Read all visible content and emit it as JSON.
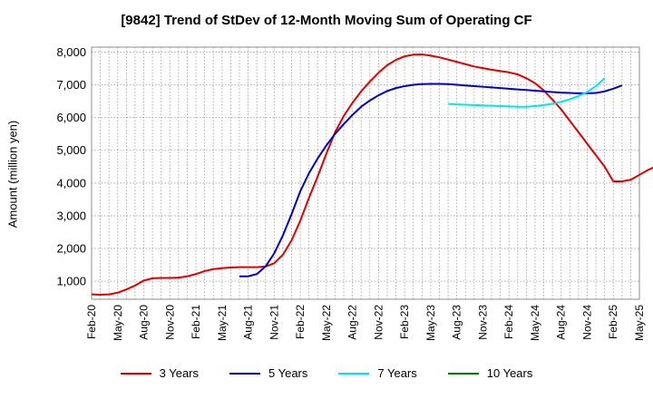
{
  "chart_data": {
    "type": "line",
    "title": "[9842]  Trend of StDev of 12-Month Moving Sum of Operating CF",
    "xlabel": "",
    "ylabel": "Amount (million yen)",
    "ylim": [
      450,
      8150
    ],
    "yticks": [
      1000,
      2000,
      3000,
      4000,
      5000,
      6000,
      7000,
      8000
    ],
    "ytick_labels": [
      "1,000",
      "2,000",
      "3,000",
      "4,000",
      "5,000",
      "6,000",
      "7,000",
      "8,000"
    ],
    "x_axis": {
      "start": "Feb-20",
      "end": "May-25",
      "tick_step_months": 3
    },
    "xtick_labels": [
      "Feb-20",
      "May-20",
      "Aug-20",
      "Nov-20",
      "Feb-21",
      "May-21",
      "Aug-21",
      "Nov-21",
      "Feb-22",
      "May-22",
      "Aug-22",
      "Nov-22",
      "Feb-23",
      "May-23",
      "Aug-23",
      "Nov-23",
      "Feb-24",
      "May-24",
      "Aug-24",
      "Nov-24",
      "Feb-25",
      "May-25"
    ],
    "grid": true,
    "legend_position": "bottom",
    "series": [
      {
        "name": "3 Years",
        "color": "#e00000",
        "start": "Feb-20",
        "values": [
          600,
          590,
          600,
          650,
          750,
          870,
          1020,
          1090,
          1100,
          1100,
          1110,
          1150,
          1220,
          1310,
          1370,
          1400,
          1420,
          1430,
          1430,
          1430,
          1450,
          1550,
          1810,
          2250,
          2850,
          3550,
          4200,
          4900,
          5550,
          6050,
          6450,
          6800,
          7100,
          7370,
          7600,
          7760,
          7870,
          7920,
          7930,
          7890,
          7840,
          7770,
          7700,
          7630,
          7560,
          7510,
          7460,
          7420,
          7380,
          7320,
          7200,
          7050,
          6830,
          6550,
          6250,
          5900,
          5550,
          5200,
          4850,
          4500,
          4050,
          4050,
          4100,
          4250,
          4400,
          4520
        ]
      },
      {
        "name": "5 Years",
        "color": "#0000cc",
        "start": "Jul-21",
        "values": [
          1150,
          1150,
          1220,
          1450,
          1850,
          2400,
          3050,
          3750,
          4300,
          4750,
          5150,
          5500,
          5800,
          6080,
          6330,
          6520,
          6680,
          6810,
          6900,
          6960,
          7000,
          7020,
          7030,
          7030,
          7020,
          7000,
          6980,
          6960,
          6940,
          6920,
          6900,
          6880,
          6860,
          6840,
          6820,
          6800,
          6780,
          6760,
          6750,
          6740,
          6740,
          6750,
          6800,
          6880,
          6980
        ]
      },
      {
        "name": "7 Years",
        "color": "#00e5ee",
        "start": "Jul-23",
        "values": [
          6420,
          6400,
          6390,
          6380,
          6370,
          6360,
          6350,
          6340,
          6330,
          6330,
          6350,
          6380,
          6420,
          6480,
          6560,
          6660,
          6780,
          6960,
          7200
        ]
      },
      {
        "name": "10 Years",
        "color": "#008000",
        "start": "Feb-20",
        "values": []
      }
    ]
  }
}
